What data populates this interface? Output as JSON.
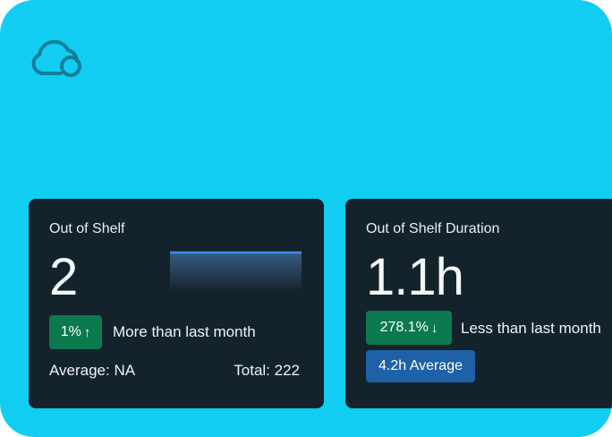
{
  "colors": {
    "background": "#12cdf2",
    "card": "#13222b",
    "badge_green": "#0b7a4f",
    "badge_blue": "#1e61a8",
    "sparkline": "#3f8ee8"
  },
  "logo": {
    "icon": "cloud-icon"
  },
  "cards": [
    {
      "title": "Out of Shelf",
      "value": "2",
      "change": {
        "label": "1%",
        "direction": "up",
        "arrow": "↑"
      },
      "comparison": "More than last month",
      "average": "Average: NA",
      "total": "Total: 222",
      "sparkline": {
        "icon": "sparkline-chart",
        "values": [
          3,
          3,
          3,
          2
        ]
      }
    },
    {
      "title": "Out of Shelf Duration",
      "value": "1.1h",
      "change": {
        "label": "278.1%",
        "direction": "down",
        "arrow": "↓"
      },
      "comparison": "Less than last month",
      "average_badge": "4.2h Average"
    }
  ]
}
